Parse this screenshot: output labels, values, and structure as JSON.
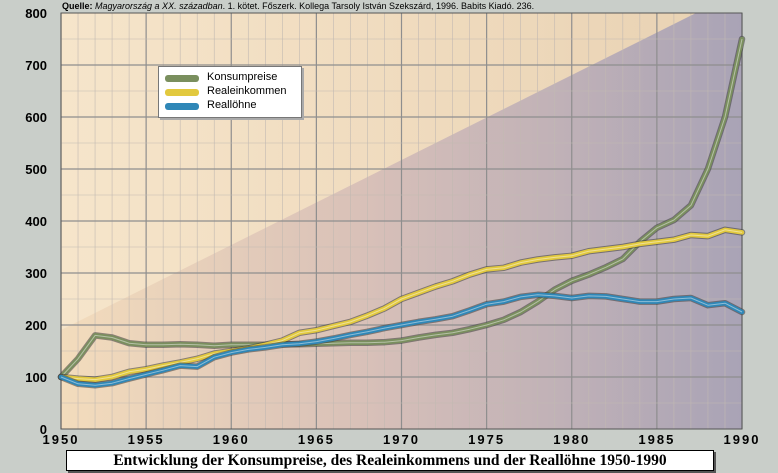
{
  "source": {
    "prefix": "Quelle:",
    "book": "Magyarország a XX. században",
    "rest": ". 1. kötet. Főszerk. Kollega Tarsoly István Szekszárd, 1996. Babits Kiadó. 236."
  },
  "caption": "Entwicklung der Konsumpreise, des Realeinkommens und der Reallöhne 1950-1990",
  "colors": {
    "konsumpreise": "#7a8f5e",
    "realeinkommen": "#e2c93e",
    "realloehne": "#2f87b7"
  },
  "chart_data": {
    "type": "line",
    "title": "Entwicklung der Konsumpreise, des Realeinkommens und der Reallöhne 1950-1990",
    "xlabel": "",
    "ylabel": "",
    "xlim": [
      1950,
      1990
    ],
    "ylim": [
      0,
      800
    ],
    "x_ticks": [
      "1950",
      "1955",
      "1960",
      "1965",
      "1970",
      "1975",
      "1980",
      "1985",
      "1990"
    ],
    "y_ticks": [
      "0",
      "100",
      "200",
      "300",
      "400",
      "500",
      "600",
      "700",
      "800"
    ],
    "grid": true,
    "legend_position": "top-left",
    "series": [
      {
        "name": "Konsumpreise",
        "x": [
          1950,
          1951,
          1952,
          1953,
          1954,
          1955,
          1956,
          1957,
          1958,
          1959,
          1960,
          1961,
          1962,
          1963,
          1964,
          1965,
          1966,
          1967,
          1968,
          1969,
          1970,
          1971,
          1972,
          1973,
          1974,
          1975,
          1976,
          1977,
          1978,
          1979,
          1980,
          1981,
          1982,
          1983,
          1984,
          1985,
          1986,
          1987,
          1988,
          1989,
          1990
        ],
        "values": [
          100,
          135,
          180,
          176,
          165,
          162,
          162,
          163,
          162,
          160,
          162,
          162,
          162,
          163,
          163,
          164,
          165,
          166,
          166,
          167,
          170,
          176,
          181,
          185,
          192,
          200,
          210,
          225,
          245,
          268,
          285,
          297,
          311,
          327,
          360,
          387,
          402,
          430,
          500,
          600,
          750
        ]
      },
      {
        "name": "Realeinkommen",
        "x": [
          1950,
          1951,
          1952,
          1953,
          1954,
          1955,
          1956,
          1957,
          1958,
          1959,
          1960,
          1961,
          1962,
          1963,
          1964,
          1965,
          1966,
          1967,
          1968,
          1969,
          1970,
          1971,
          1972,
          1973,
          1974,
          1975,
          1976,
          1977,
          1978,
          1979,
          1980,
          1981,
          1982,
          1983,
          1984,
          1985,
          1986,
          1987,
          1988,
          1989,
          1990
        ],
        "values": [
          100,
          97,
          95,
          100,
          110,
          115,
          122,
          128,
          135,
          145,
          150,
          155,
          162,
          170,
          185,
          190,
          198,
          206,
          218,
          232,
          250,
          262,
          274,
          284,
          297,
          307,
          310,
          320,
          326,
          330,
          333,
          342,
          346,
          350,
          356,
          360,
          364,
          373,
          371,
          383,
          378
        ]
      },
      {
        "name": "Reallöhne",
        "x": [
          1950,
          1951,
          1952,
          1953,
          1954,
          1955,
          1956,
          1957,
          1958,
          1959,
          1960,
          1961,
          1962,
          1963,
          1964,
          1965,
          1966,
          1967,
          1968,
          1969,
          1970,
          1971,
          1972,
          1973,
          1974,
          1975,
          1976,
          1977,
          1978,
          1979,
          1980,
          1981,
          1982,
          1983,
          1984,
          1985,
          1986,
          1987,
          1988,
          1989,
          1990
        ],
        "values": [
          100,
          87,
          84,
          88,
          97,
          105,
          113,
          122,
          120,
          138,
          147,
          153,
          157,
          162,
          164,
          168,
          174,
          181,
          187,
          194,
          200,
          206,
          211,
          217,
          228,
          240,
          245,
          254,
          258,
          256,
          252,
          256,
          255,
          250,
          245,
          245,
          250,
          252,
          238,
          242,
          225
        ]
      }
    ]
  }
}
